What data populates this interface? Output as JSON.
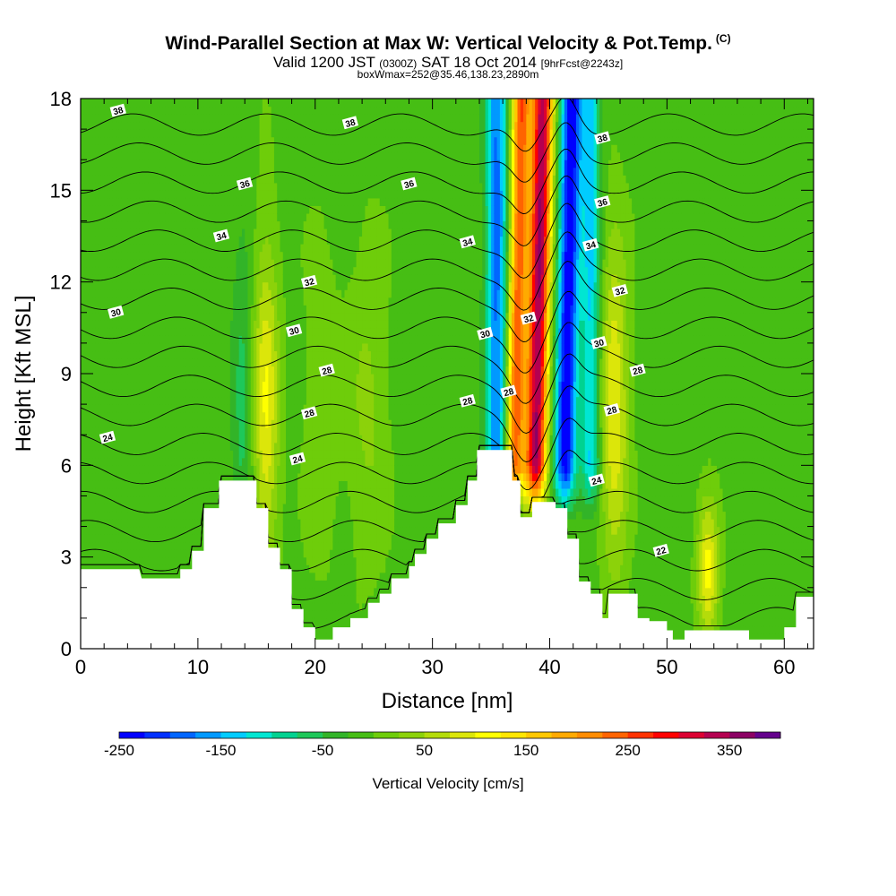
{
  "header": {
    "title": "Wind-Parallel Section at Max W: Vertical Velocity & Pot.Temp.",
    "title_mark": "(C)",
    "valid_a": "Valid 1200 JST",
    "valid_zulu": "(0300Z)",
    "valid_b": "SAT 18 Oct 2014",
    "valid_fcst": "[9hrFcst@2243z]",
    "box_info": "boxWmax=252@35.46,138.23,2890m"
  },
  "chart_data": {
    "type": "heatmap",
    "xlabel": "Distance [nm]",
    "ylabel": "Height [Kft MSL]",
    "xlim": [
      0,
      62.5
    ],
    "ylim": [
      0,
      18
    ],
    "x_ticks": [
      "0",
      "10",
      "20",
      "30",
      "40",
      "50",
      "60"
    ],
    "y_ticks": [
      "0",
      "3",
      "6",
      "9",
      "12",
      "15",
      "18"
    ],
    "colorbar": {
      "title": "Vertical Velocity [cm/s]",
      "min": -250,
      "max": 400,
      "step": 25,
      "tick_labels": [
        "-250",
        "-150",
        "-50",
        "50",
        "150",
        "250",
        "350"
      ],
      "colors": [
        "#0000ff",
        "#0030ff",
        "#0066ff",
        "#0099ff",
        "#00ccff",
        "#00e6d2",
        "#00d290",
        "#1ec85a",
        "#32b428",
        "#46be14",
        "#6ecd0a",
        "#8cd20a",
        "#b4dc0a",
        "#dce60a",
        "#ffff00",
        "#ffe600",
        "#ffc800",
        "#ffaa00",
        "#ff8c00",
        "#ff6400",
        "#ff3200",
        "#ff0000",
        "#dc0032",
        "#b40050",
        "#8c0064",
        "#64008c"
      ]
    },
    "terrain_kft": [
      [
        0,
        2.6
      ],
      [
        5,
        2.6
      ],
      [
        5.2,
        2.3
      ],
      [
        8.5,
        2.3
      ],
      [
        8.5,
        2.6
      ],
      [
        9.5,
        2.6
      ],
      [
        9.5,
        3.2
      ],
      [
        10.5,
        3.2
      ],
      [
        10.5,
        4.6
      ],
      [
        11.8,
        4.6
      ],
      [
        11.8,
        5.5
      ],
      [
        15,
        5.5
      ],
      [
        15,
        4.6
      ],
      [
        16,
        4.6
      ],
      [
        16,
        3.3
      ],
      [
        17,
        3.3
      ],
      [
        17,
        2.6
      ],
      [
        18,
        2.6
      ],
      [
        18,
        1.3
      ],
      [
        19,
        1.3
      ],
      [
        19,
        0.7
      ],
      [
        20,
        0.7
      ],
      [
        20,
        0.3
      ],
      [
        21.5,
        0.3
      ],
      [
        21.5,
        0.7
      ],
      [
        23,
        0.7
      ],
      [
        23,
        1.0
      ],
      [
        24.5,
        1.0
      ],
      [
        24.5,
        1.5
      ],
      [
        25.5,
        1.5
      ],
      [
        25.5,
        1.8
      ],
      [
        26.5,
        1.8
      ],
      [
        26.5,
        2.3
      ],
      [
        28,
        2.3
      ],
      [
        28,
        2.7
      ],
      [
        28.5,
        2.7
      ],
      [
        28.5,
        3.1
      ],
      [
        29.5,
        3.1
      ],
      [
        29.5,
        3.6
      ],
      [
        30.5,
        3.6
      ],
      [
        30.5,
        4.1
      ],
      [
        32,
        4.1
      ],
      [
        32,
        4.7
      ],
      [
        33,
        4.7
      ],
      [
        33,
        5.5
      ],
      [
        33.8,
        5.5
      ],
      [
        33.8,
        6.5
      ],
      [
        36.8,
        6.5
      ],
      [
        36.8,
        5.5
      ],
      [
        37.5,
        5.5
      ],
      [
        37.5,
        4.3
      ],
      [
        38.5,
        4.3
      ],
      [
        38.5,
        4.8
      ],
      [
        40.5,
        4.8
      ],
      [
        40.5,
        4.6
      ],
      [
        41.5,
        4.6
      ],
      [
        41.5,
        3.6
      ],
      [
        42.5,
        3.6
      ],
      [
        42.5,
        2.2
      ],
      [
        43.5,
        2.2
      ],
      [
        43.5,
        1.8
      ],
      [
        44.5,
        1.8
      ],
      [
        44.5,
        1.0
      ],
      [
        45,
        1.0
      ],
      [
        45,
        1.8
      ],
      [
        47.5,
        1.8
      ],
      [
        47.5,
        1.0
      ],
      [
        48.5,
        1.0
      ],
      [
        48.5,
        0.9
      ],
      [
        50,
        0.9
      ],
      [
        50,
        0.6
      ],
      [
        50.5,
        0.6
      ],
      [
        50.5,
        0.3
      ],
      [
        51.5,
        0.3
      ],
      [
        51.5,
        0.6
      ],
      [
        57,
        0.6
      ],
      [
        57,
        0.3
      ],
      [
        60,
        0.3
      ],
      [
        60,
        0.7
      ],
      [
        61,
        0.7
      ],
      [
        61,
        1.7
      ],
      [
        62.5,
        1.7
      ]
    ],
    "w_anomalies_cms": [
      {
        "x": 15.8,
        "w": 110
      },
      {
        "x": 13.8,
        "w": -50
      },
      {
        "x": 20.5,
        "w": 30
      },
      {
        "x": 24.5,
        "w": 40
      },
      {
        "x": 35.5,
        "w": -170
      },
      {
        "x": 37.2,
        "w": 250
      },
      {
        "x": 39.0,
        "w": 360
      },
      {
        "x": 41.5,
        "w": -240
      },
      {
        "x": 43.5,
        "w": -120
      },
      {
        "x": 45.5,
        "w": 110
      },
      {
        "x": 53.5,
        "w": 120
      }
    ],
    "theta_contour_labels": [
      {
        "text": "38",
        "x": 3.2,
        "y": 17.6
      },
      {
        "text": "38",
        "x": 23.0,
        "y": 17.2
      },
      {
        "text": "38",
        "x": 44.5,
        "y": 16.7
      },
      {
        "text": "36",
        "x": 14.0,
        "y": 15.2
      },
      {
        "text": "36",
        "x": 28.0,
        "y": 15.2
      },
      {
        "text": "36",
        "x": 44.5,
        "y": 14.6
      },
      {
        "text": "34",
        "x": 12.0,
        "y": 13.5
      },
      {
        "text": "34",
        "x": 33.0,
        "y": 13.3
      },
      {
        "text": "34",
        "x": 43.5,
        "y": 13.2
      },
      {
        "text": "32",
        "x": 19.5,
        "y": 12.0
      },
      {
        "text": "32",
        "x": 38.2,
        "y": 10.8
      },
      {
        "text": "32",
        "x": 46.0,
        "y": 11.7
      },
      {
        "text": "30",
        "x": 3.0,
        "y": 11.0
      },
      {
        "text": "30",
        "x": 18.2,
        "y": 10.4
      },
      {
        "text": "30",
        "x": 34.5,
        "y": 10.3
      },
      {
        "text": "30",
        "x": 44.2,
        "y": 10.0
      },
      {
        "text": "28",
        "x": 21.0,
        "y": 9.1
      },
      {
        "text": "28",
        "x": 36.5,
        "y": 8.4
      },
      {
        "text": "28",
        "x": 47.5,
        "y": 9.1
      },
      {
        "text": "28",
        "x": 19.5,
        "y": 7.7
      },
      {
        "text": "28",
        "x": 33.0,
        "y": 8.1
      },
      {
        "text": "28",
        "x": 45.3,
        "y": 7.8
      },
      {
        "text": "24",
        "x": 2.3,
        "y": 6.9
      },
      {
        "text": "24",
        "x": 18.5,
        "y": 6.2
      },
      {
        "text": "24",
        "x": 44.0,
        "y": 5.5
      },
      {
        "text": "22",
        "x": 49.5,
        "y": 3.2
      }
    ]
  }
}
